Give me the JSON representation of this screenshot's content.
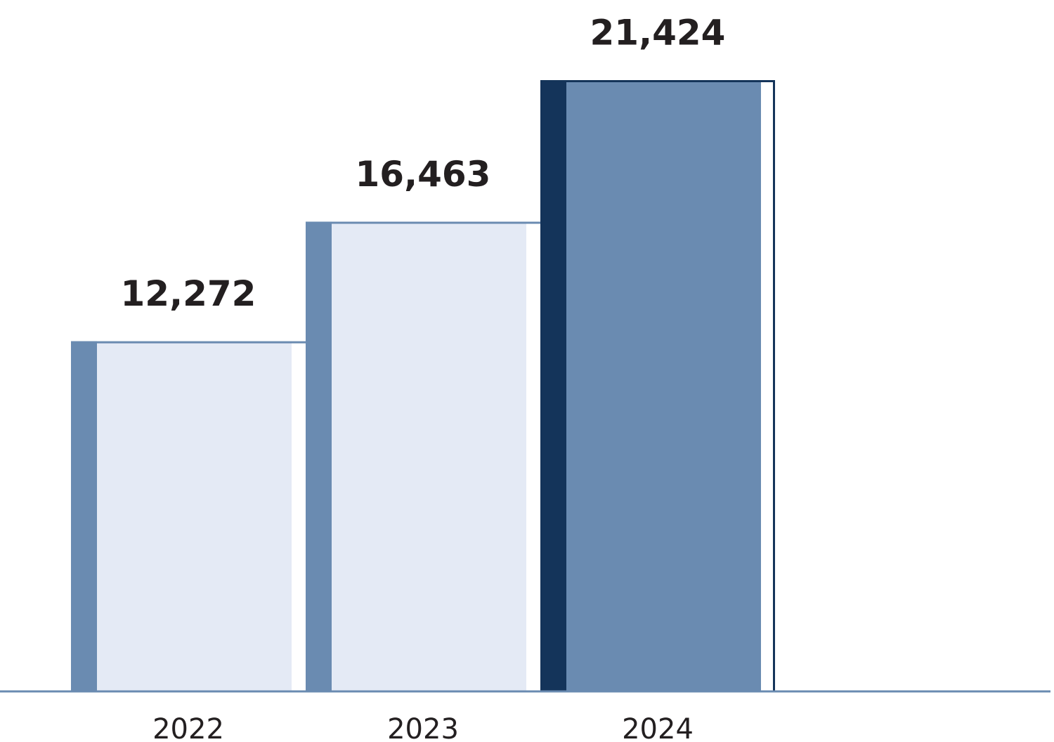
{
  "chart_data": {
    "type": "bar",
    "categories": [
      "2022",
      "2023",
      "2024"
    ],
    "values": [
      12272,
      16463,
      21424
    ],
    "value_labels": [
      "12,272",
      "16,463",
      "21,424"
    ],
    "bar_colors": [
      "#e4eaf5",
      "#e4eaf5",
      "#6a8bb1"
    ],
    "edge_colors": [
      "#6a8bb1",
      "#6a8bb1",
      "#14345a"
    ]
  }
}
